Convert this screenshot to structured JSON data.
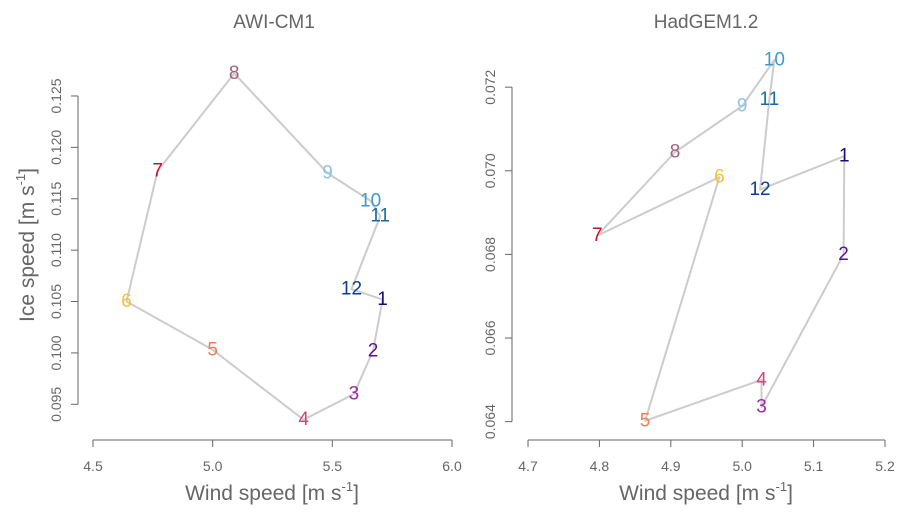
{
  "chart_data": [
    {
      "type": "line",
      "title": "AWI-CM1",
      "xlabel": "Wind speed [m s",
      "xlabel_sup": "-1",
      "xlabel_end": "]",
      "ylabel": "Ice speed [m s",
      "ylabel_sup": "-1",
      "ylabel_end": "]",
      "xlim": [
        4.5,
        6.0
      ],
      "ylim": [
        0.0925,
        0.1285
      ],
      "xticks": [
        "4.5",
        "5.0",
        "5.5",
        "6.0"
      ],
      "yticks": [
        "0.095",
        "0.100",
        "0.105",
        "0.110",
        "0.115",
        "0.120",
        "0.125"
      ],
      "grid": false,
      "line_color": "#cccccc",
      "points": [
        {
          "label": "1",
          "x": 5.71,
          "y": 0.1052,
          "color": "#1b0a7a"
        },
        {
          "label": "2",
          "x": 5.67,
          "y": 0.1002,
          "color": "#5b0f99"
        },
        {
          "label": "3",
          "x": 5.59,
          "y": 0.096,
          "color": "#9b2a9e"
        },
        {
          "label": "4",
          "x": 5.38,
          "y": 0.0935,
          "color": "#cc4578"
        },
        {
          "label": "5",
          "x": 5.0,
          "y": 0.1003,
          "color": "#f07e56"
        },
        {
          "label": "6",
          "x": 4.64,
          "y": 0.105,
          "color": "#f6c136"
        },
        {
          "label": "7",
          "x": 4.77,
          "y": 0.1177,
          "color": "#c3112f"
        },
        {
          "label": "8",
          "x": 5.09,
          "y": 0.1272,
          "color": "#a5617e"
        },
        {
          "label": "9",
          "x": 5.48,
          "y": 0.1175,
          "color": "#8ec4df"
        },
        {
          "label": "10",
          "x": 5.66,
          "y": 0.1148,
          "color": "#3f9ac9"
        },
        {
          "label": "11",
          "x": 5.7,
          "y": 0.1133,
          "color": "#1b6aa5"
        },
        {
          "label": "12",
          "x": 5.58,
          "y": 0.1062,
          "color": "#0b3f8c"
        }
      ]
    },
    {
      "type": "line",
      "title": "HadGEM1.2",
      "xlabel": "Wind speed [m s",
      "xlabel_sup": "-1",
      "xlabel_end": "]",
      "xlim": [
        4.7,
        5.2
      ],
      "ylim": [
        0.0638,
        0.07265
      ],
      "xticks": [
        "4.7",
        "4.8",
        "4.9",
        "5.0",
        "5.1",
        "5.2"
      ],
      "yticks": [
        "0.064",
        "0.066",
        "0.068",
        "0.070",
        "0.072"
      ],
      "grid": false,
      "line_color": "#cccccc",
      "points": [
        {
          "label": "1",
          "x": 5.143,
          "y": 0.07035,
          "color": "#1b0a7a"
        },
        {
          "label": "2",
          "x": 5.142,
          "y": 0.068,
          "color": "#5b0f99"
        },
        {
          "label": "3",
          "x": 5.027,
          "y": 0.06435,
          "color": "#9b2a9e"
        },
        {
          "label": "4",
          "x": 5.027,
          "y": 0.065,
          "color": "#cc4578"
        },
        {
          "label": "5",
          "x": 4.864,
          "y": 0.06402,
          "color": "#f07e56"
        },
        {
          "label": "6",
          "x": 4.968,
          "y": 0.06985,
          "color": "#f6c136"
        },
        {
          "label": "7",
          "x": 4.797,
          "y": 0.06845,
          "color": "#c3112f"
        },
        {
          "label": "8",
          "x": 4.906,
          "y": 0.07045,
          "color": "#a5617e"
        },
        {
          "label": "9",
          "x": 5.0,
          "y": 0.07155,
          "color": "#8ec4df"
        },
        {
          "label": "10",
          "x": 5.045,
          "y": 0.07265,
          "color": "#3f9ac9"
        },
        {
          "label": "11",
          "x": 5.038,
          "y": 0.0717,
          "color": "#1b6aa5"
        },
        {
          "label": "12",
          "x": 5.025,
          "y": 0.06955,
          "color": "#0b3f8c"
        }
      ]
    }
  ]
}
